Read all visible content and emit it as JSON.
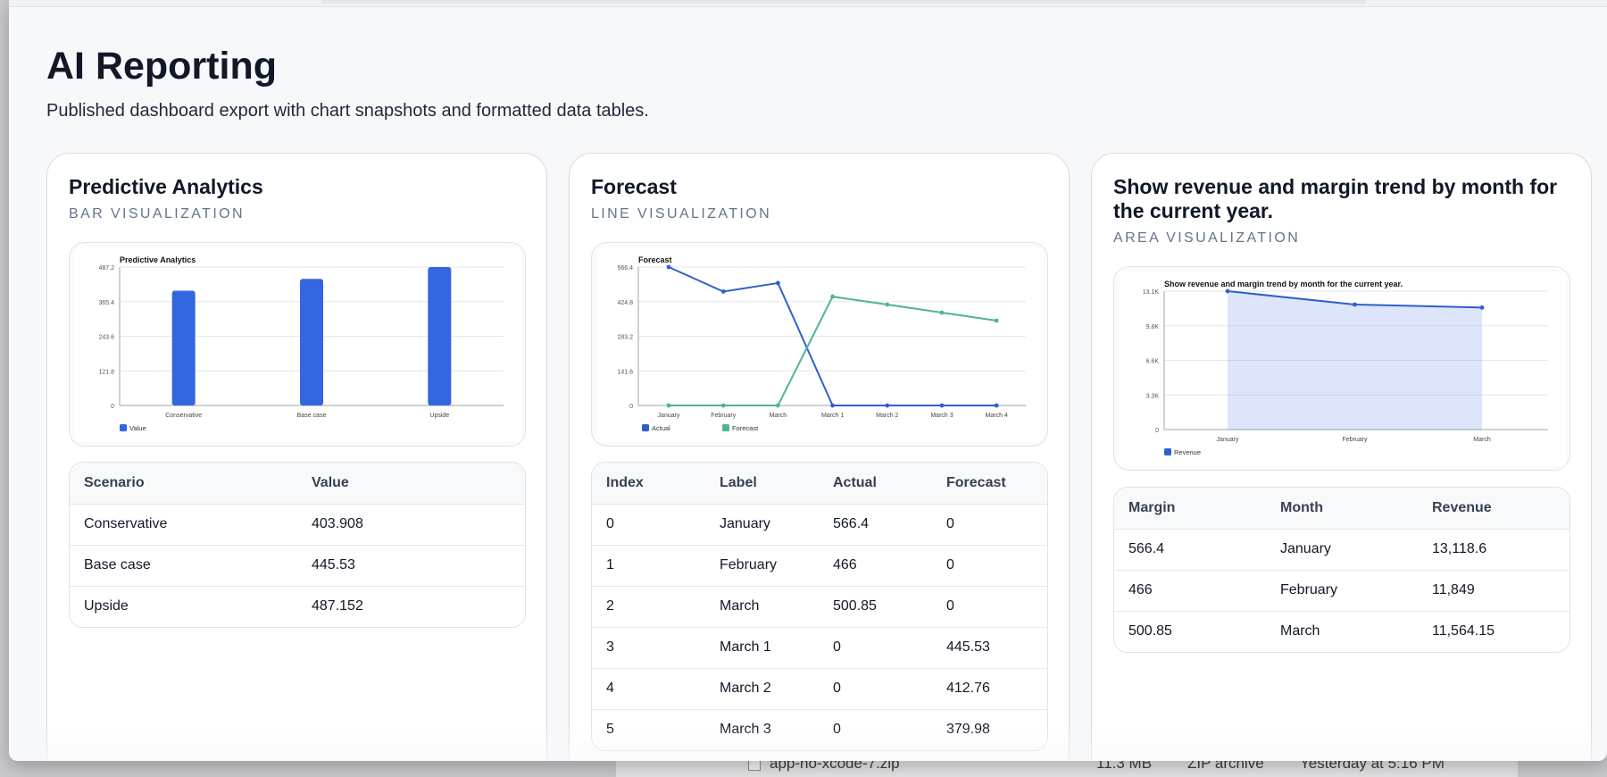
{
  "background_window": {
    "file_row": {
      "name": "app-no-xcode-7.zip",
      "size": "11.3 MB",
      "kind": "ZIP archive",
      "date": "Yesterday at 5:16 PM"
    }
  },
  "page": {
    "title": "AI Reporting",
    "subtitle": "Published dashboard export with chart snapshots and formatted data tables."
  },
  "cards": [
    {
      "title": "Predictive Analytics",
      "kicker": "BAR VISUALIZATION",
      "chart_title": "Predictive Analytics",
      "legend": [
        "Value"
      ],
      "table": {
        "headers": [
          "Scenario",
          "Value"
        ],
        "rows": [
          [
            "Conservative",
            "403.908"
          ],
          [
            "Base case",
            "445.53"
          ],
          [
            "Upside",
            "487.152"
          ]
        ]
      }
    },
    {
      "title": "Forecast",
      "kicker": "LINE VISUALIZATION",
      "chart_title": "Forecast",
      "legend": [
        "Actual",
        "Forecast"
      ],
      "table": {
        "headers": [
          "Index",
          "Label",
          "Actual",
          "Forecast"
        ],
        "rows": [
          [
            "0",
            "January",
            "566.4",
            "0"
          ],
          [
            "1",
            "February",
            "466",
            "0"
          ],
          [
            "2",
            "March",
            "500.85",
            "0"
          ],
          [
            "3",
            "March 1",
            "0",
            "445.53"
          ],
          [
            "4",
            "March 2",
            "0",
            "412.76"
          ],
          [
            "5",
            "March 3",
            "0",
            "379.98"
          ]
        ]
      }
    },
    {
      "title": "Show revenue and margin trend by month for the current year.",
      "kicker": "AREA VISUALIZATION",
      "chart_title": "Show revenue and margin trend by month for the current year.",
      "legend": [
        "Revenue"
      ],
      "table": {
        "headers": [
          "Margin",
          "Month",
          "Revenue"
        ],
        "rows": [
          [
            "566.4",
            "January",
            "13,118.6"
          ],
          [
            "466",
            "February",
            "11,849"
          ],
          [
            "500.85",
            "March",
            "11,564.15"
          ]
        ]
      }
    }
  ],
  "chart_data": [
    {
      "type": "bar",
      "title": "Predictive Analytics",
      "categories": [
        "Conservative",
        "Base case",
        "Upside"
      ],
      "series": [
        {
          "name": "Value",
          "values": [
            403.908,
            445.53,
            487.152
          ]
        }
      ],
      "yticks": [
        "0",
        "121.8",
        "243.6",
        "365.4",
        "487.2"
      ],
      "ylim": [
        0,
        487.2
      ],
      "color": "#3366e0",
      "grid": true,
      "legend": "bottom-left"
    },
    {
      "type": "line",
      "title": "Forecast",
      "categories": [
        "January",
        "February",
        "March",
        "March 1",
        "March 2",
        "March 3",
        "March 4"
      ],
      "series": [
        {
          "name": "Actual",
          "values": [
            566.4,
            466,
            500.85,
            0,
            0,
            0,
            0
          ],
          "color": "#2f5fcf"
        },
        {
          "name": "Forecast",
          "values": [
            0,
            0,
            0,
            445.53,
            412.76,
            379.98,
            347.2
          ],
          "color": "#4fb39a"
        }
      ],
      "yticks": [
        "0",
        "141.6",
        "283.2",
        "424.8",
        "566.4"
      ],
      "ylim": [
        0,
        566.4
      ],
      "grid": true,
      "legend": "bottom-left"
    },
    {
      "type": "area",
      "title": "Show revenue and margin trend by month for the current year.",
      "categories": [
        "January",
        "February",
        "March"
      ],
      "series": [
        {
          "name": "Revenue",
          "values": [
            13118.6,
            11849,
            11564.15
          ],
          "color": "#2f5fcf"
        }
      ],
      "yticks": [
        "0",
        "3.3K",
        "6.6K",
        "9.8K",
        "13.1K"
      ],
      "ylim": [
        0,
        13118.6
      ],
      "grid": true,
      "legend": "bottom-left"
    }
  ]
}
